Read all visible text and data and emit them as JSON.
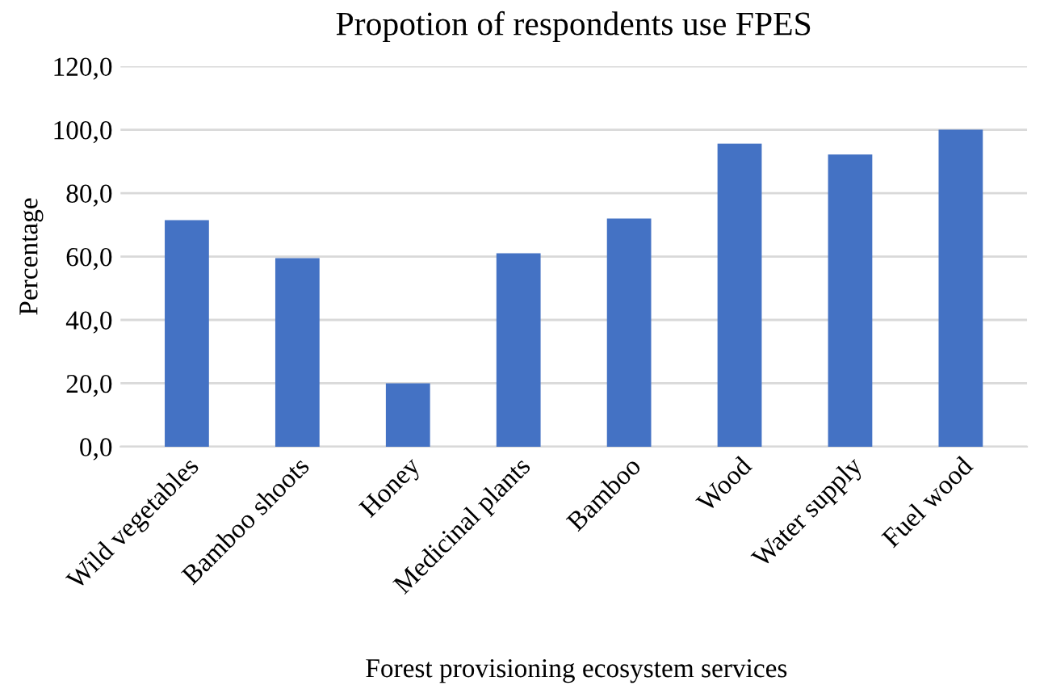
{
  "chart_data": {
    "type": "bar",
    "title": "Propotion of respondents use FPES",
    "xlabel": "Forest provisioning ecosystem services",
    "ylabel": "Percentage",
    "categories": [
      "Wild vegetables",
      "Bamboo shoots",
      "Honey",
      "Medicinal plants",
      "Bamboo",
      "Wood",
      "Water supply",
      "Fuel wood"
    ],
    "values": [
      71.5,
      59.5,
      20.0,
      61.0,
      72.0,
      95.6,
      92.2,
      100.0
    ],
    "color": "#4472c4",
    "ylim": [
      0,
      120
    ],
    "yticks": [
      {
        "value": 0,
        "label": "0,0"
      },
      {
        "value": 20,
        "label": "20,0"
      },
      {
        "value": 40,
        "label": "40,0"
      },
      {
        "value": 60,
        "label": "60,0"
      },
      {
        "value": 80,
        "label": "80,0"
      },
      {
        "value": 100,
        "label": "100,0"
      },
      {
        "value": 120,
        "label": "120,0"
      }
    ],
    "grid": "y",
    "legend": false
  }
}
